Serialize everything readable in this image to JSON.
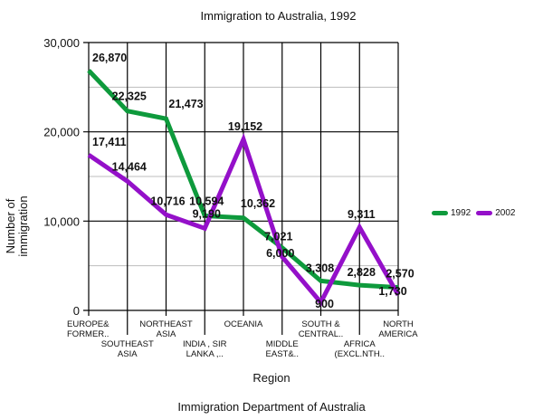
{
  "chart_data": {
    "type": "line",
    "title": "Immigration to Australia, 1992",
    "xlabel": "Region",
    "ylabel": "Number of immigration",
    "caption": "Immigration Department of Australia",
    "categories": [
      "EUROPE& FORMER..",
      "SOUTHEAST ASIA",
      "NORTHEAST ASIA",
      "INDIA , SIR LANKA ,..",
      "OCEANIA",
      "MIDDLE EAST&..",
      "SOUTH & CENTRAL..",
      "AFRICA (EXCL.NTH..",
      "NORTH AMERICA"
    ],
    "category_lines": [
      [
        "EUROPE&",
        "FORMER.."
      ],
      [
        "SOUTHEAST",
        "ASIA"
      ],
      [
        "NORTHEAST",
        "ASIA"
      ],
      [
        "INDIA , SIR",
        "LANKA ,.."
      ],
      [
        "OCEANIA"
      ],
      [
        "MIDDLE",
        "EAST&.."
      ],
      [
        "SOUTH &",
        "CENTRAL.."
      ],
      [
        "AFRICA",
        "(EXCL.NTH.."
      ],
      [
        "NORTH",
        "AMERICA"
      ]
    ],
    "series": [
      {
        "name": "1992",
        "color": "#0e9a3c",
        "values": [
          26870,
          22325,
          21473,
          10594,
          10362,
          7021,
          3308,
          2828,
          2570
        ],
        "labels": [
          "26,870",
          "22,325",
          "21,473",
          "10,594",
          "10,362",
          "7,021",
          "3,308",
          "2,828",
          "2,570"
        ]
      },
      {
        "name": "2002",
        "color": "#9410c9",
        "values": [
          17411,
          14464,
          10716,
          9190,
          19152,
          6000,
          900,
          9311,
          1730
        ],
        "labels": [
          "17,411",
          "14,464",
          "10,716",
          "9,190",
          "19,152",
          "6,000",
          "900",
          "9,311",
          "1,730"
        ]
      }
    ],
    "ylim": [
      0,
      30000
    ],
    "yticks": [
      0,
      10000,
      20000,
      30000
    ],
    "ytick_labels": [
      "0",
      "10,000",
      "20,000",
      "30,000"
    ],
    "minor_grid": [
      5000,
      15000,
      25000
    ],
    "grid": true,
    "legend_position": "right"
  },
  "legend": {
    "items": [
      {
        "label": "1992",
        "color": "#0e9a3c"
      },
      {
        "label": "2002",
        "color": "#9410c9"
      }
    ]
  }
}
